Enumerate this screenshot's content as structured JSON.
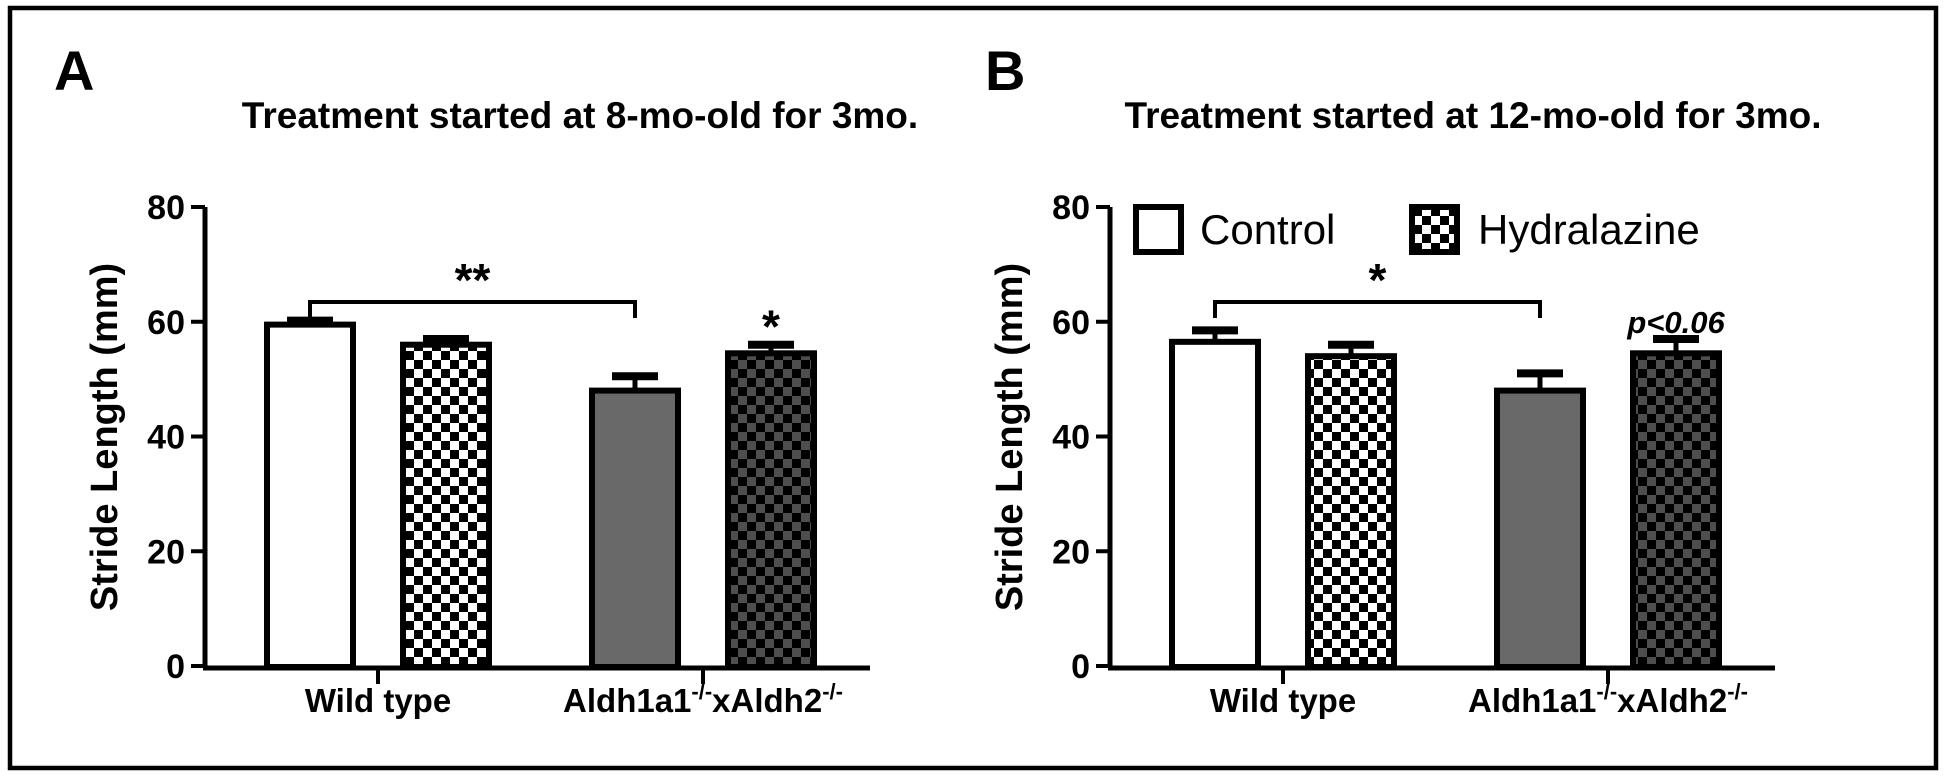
{
  "figure": {
    "border_color": "#000000",
    "background": "#ffffff",
    "ink_color": "#000000",
    "gray_bar_color": "#696969",
    "dark_check_color": "#4e4e4e"
  },
  "legend": {
    "items": [
      {
        "label": "Control",
        "swatch": "open-white-box"
      },
      {
        "label": "Hydralazine",
        "swatch": "checkerboard-box"
      }
    ]
  },
  "chart_data": [
    {
      "type": "bar",
      "panel_label": "A",
      "title": "Treatment started at 8-mo-old for 3mo.",
      "ylabel": "Stride Length (mm)",
      "ylim": [
        0,
        80
      ],
      "yticks": [
        0,
        20,
        40,
        60,
        80
      ],
      "grid": false,
      "legend_visible": false,
      "categories": [
        "Wild type",
        "Aldh1a1-/-xAldh2-/-"
      ],
      "categories_rich": [
        {
          "parts": [
            {
              "t": "Wild type",
              "sup": false
            }
          ]
        },
        {
          "parts": [
            {
              "t": "Aldh1a1",
              "sup": false
            },
            {
              "t": "-/-",
              "sup": true
            },
            {
              "t": "xAldh2",
              "sup": false
            },
            {
              "t": "-/-",
              "sup": true
            }
          ]
        }
      ],
      "series": [
        {
          "name": "Control",
          "values": [
            59.5,
            48.0
          ],
          "errors": [
            0.7,
            2.5
          ],
          "styles": [
            "open",
            "gray"
          ]
        },
        {
          "name": "Hydralazine",
          "values": [
            56.0,
            54.5
          ],
          "errors": [
            1.0,
            1.5
          ],
          "styles": [
            "check-light",
            "check-dark"
          ]
        }
      ],
      "annotations": {
        "bracket": {
          "label": "**",
          "from_bar": [
            0,
            0
          ],
          "to_bar": [
            1,
            0
          ]
        },
        "bar_labels": [
          {
            "bar": [
              1,
              1
            ],
            "text": "*",
            "star": true,
            "italic": false
          }
        ]
      }
    },
    {
      "type": "bar",
      "panel_label": "B",
      "title": "Treatment started at 12-mo-old for 3mo.",
      "ylabel": "Stride Length (mm)",
      "ylim": [
        0,
        80
      ],
      "yticks": [
        0,
        20,
        40,
        60,
        80
      ],
      "grid": false,
      "legend_visible": true,
      "categories": [
        "Wild type",
        "Aldh1a1-/-xAldh2-/-"
      ],
      "categories_rich": [
        {
          "parts": [
            {
              "t": "Wild type",
              "sup": false
            }
          ]
        },
        {
          "parts": [
            {
              "t": "Aldh1a1",
              "sup": false
            },
            {
              "t": "-/-",
              "sup": true
            },
            {
              "t": "xAldh2",
              "sup": false
            },
            {
              "t": "-/-",
              "sup": true
            }
          ]
        }
      ],
      "series": [
        {
          "name": "Control",
          "values": [
            56.5,
            48.0
          ],
          "errors": [
            2.0,
            3.0
          ],
          "styles": [
            "open",
            "gray"
          ]
        },
        {
          "name": "Hydralazine",
          "values": [
            54.0,
            54.5
          ],
          "errors": [
            2.0,
            2.5
          ],
          "styles": [
            "check-light",
            "check-dark"
          ]
        }
      ],
      "annotations": {
        "bracket": {
          "label": "*",
          "from_bar": [
            0,
            0
          ],
          "to_bar": [
            1,
            0
          ]
        },
        "bar_labels": [
          {
            "bar": [
              1,
              1
            ],
            "text": "p<0.06",
            "star": false,
            "italic": true
          }
        ]
      }
    }
  ]
}
